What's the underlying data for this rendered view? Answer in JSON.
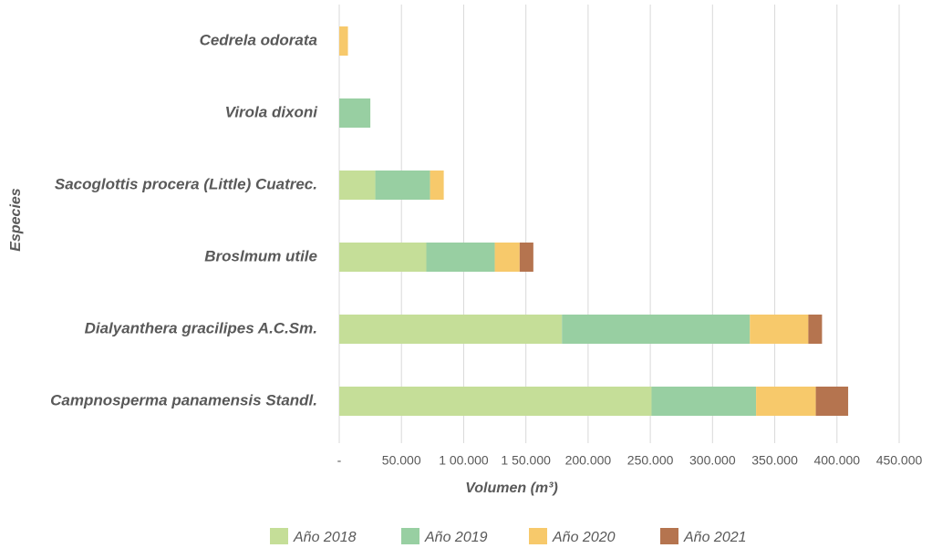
{
  "chart_data": {
    "type": "bar",
    "orientation": "horizontal",
    "stacked": true,
    "xlabel": "Volumen (m³)",
    "ylabel": "Especies",
    "categories": [
      "Cedrela odorata",
      "Virola dixoni",
      "Sacoglottis procera (Little) Cuatrec.",
      "Broslmum utile",
      "Dialyanthera gracilipes A.C.Sm.",
      "Campnosperma panamensis Standl."
    ],
    "series": [
      {
        "name": "Año 2018",
        "color": "#c5de98",
        "values": [
          0,
          0,
          29000,
          70000,
          179000,
          251000
        ]
      },
      {
        "name": "Año 2019",
        "color": "#98cfa2",
        "values": [
          0,
          25000,
          44000,
          55000,
          151000,
          84000
        ]
      },
      {
        "name": "Año 2020",
        "color": "#f7c96b",
        "values": [
          7000,
          0,
          11000,
          20000,
          47000,
          48000
        ]
      },
      {
        "name": "Año 2021",
        "color": "#b5744f",
        "values": [
          0,
          0,
          0,
          11000,
          11000,
          26000
        ]
      }
    ],
    "xlim": [
      0,
      450000
    ],
    "xticks": [
      {
        "value": 0,
        "label": "-"
      },
      {
        "value": 50000,
        "label": "50.000"
      },
      {
        "value": 100000,
        "label": "1 00.000"
      },
      {
        "value": 150000,
        "label": "1 50.000"
      },
      {
        "value": 200000,
        "label": "200.000"
      },
      {
        "value": 250000,
        "label": "250.000"
      },
      {
        "value": 300000,
        "label": "300.000"
      },
      {
        "value": 350000,
        "label": "350.000"
      },
      {
        "value": 400000,
        "label": "400.000"
      },
      {
        "value": 450000,
        "label": "450.000"
      }
    ],
    "grid": true,
    "legend": "bottom"
  }
}
